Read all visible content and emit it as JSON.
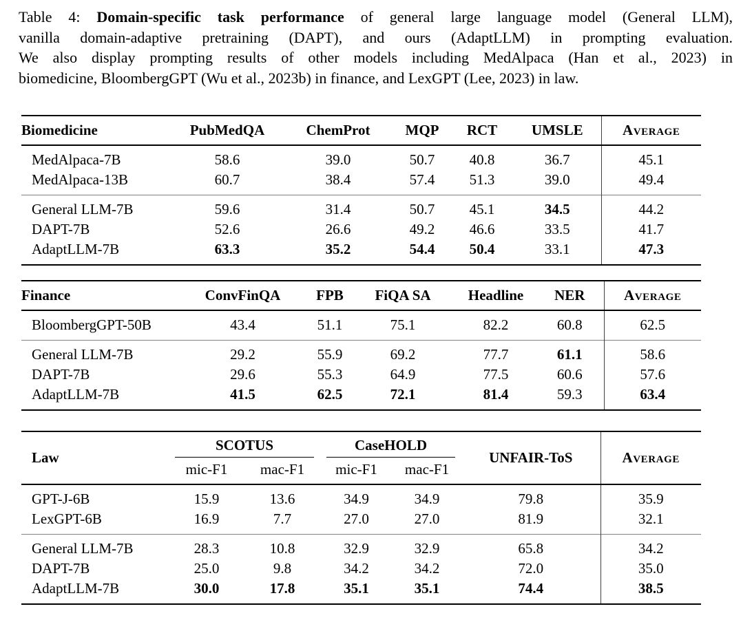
{
  "caption": {
    "lines": [
      {
        "segments": [
          {
            "text": "Table 4: ",
            "bold": false
          },
          {
            "text": "Domain-specific task performance",
            "bold": true
          },
          {
            "text": " of general large language model (General LLM),",
            "bold": false
          }
        ]
      },
      {
        "segments": [
          {
            "text": "vanilla domain-adaptive pretraining (DAPT), and ours (AdaptLLM) in prompting evaluation.",
            "bold": false
          }
        ]
      },
      {
        "segments": [
          {
            "text": "We also display prompting results of other models including MedAlpaca (Han et al., 2023) in",
            "bold": false
          }
        ]
      },
      {
        "segments": [
          {
            "text": "biomedicine, BloombergGPT (Wu et al., 2023b) in finance, and LexGPT (Lee, 2023) in law.",
            "bold": false
          }
        ]
      }
    ]
  },
  "colors": {
    "heavy_rule": "#000000",
    "header_rule": "#000000",
    "group_rule": "#808080",
    "average_divider": "#3f3f3f",
    "text": "#000000",
    "background": "#ffffff"
  },
  "tables": [
    {
      "id": "biomedicine",
      "domain_label": "Biomedicine",
      "columns": [
        "PubMedQA",
        "ChemProt",
        "MQP",
        "RCT",
        "UMSLE"
      ],
      "average_label": "Average",
      "groups": [
        {
          "rows": [
            {
              "model": "MedAlpaca-7B",
              "values": [
                {
                  "v": "58.6"
                },
                {
                  "v": "39.0"
                },
                {
                  "v": "50.7"
                },
                {
                  "v": "40.8"
                },
                {
                  "v": "36.7"
                }
              ],
              "average": {
                "v": "45.1"
              }
            },
            {
              "model": "MedAlpaca-13B",
              "values": [
                {
                  "v": "60.7"
                },
                {
                  "v": "38.4"
                },
                {
                  "v": "57.4"
                },
                {
                  "v": "51.3"
                },
                {
                  "v": "39.0"
                }
              ],
              "average": {
                "v": "49.4"
              }
            }
          ]
        },
        {
          "rows": [
            {
              "model": "General LLM-7B",
              "values": [
                {
                  "v": "59.6"
                },
                {
                  "v": "31.4"
                },
                {
                  "v": "50.7"
                },
                {
                  "v": "45.1"
                },
                {
                  "v": "34.5",
                  "b": true
                }
              ],
              "average": {
                "v": "44.2"
              }
            },
            {
              "model": "DAPT-7B",
              "values": [
                {
                  "v": "52.6"
                },
                {
                  "v": "26.6"
                },
                {
                  "v": "49.2"
                },
                {
                  "v": "46.6"
                },
                {
                  "v": "33.5"
                }
              ],
              "average": {
                "v": "41.7"
              }
            },
            {
              "model": "AdaptLLM-7B",
              "values": [
                {
                  "v": "63.3",
                  "b": true
                },
                {
                  "v": "35.2",
                  "b": true
                },
                {
                  "v": "54.4",
                  "b": true
                },
                {
                  "v": "50.4",
                  "b": true
                },
                {
                  "v": "33.1"
                }
              ],
              "average": {
                "v": "47.3",
                "b": true
              }
            }
          ]
        }
      ]
    },
    {
      "id": "finance",
      "domain_label": "Finance",
      "columns": [
        "ConvFinQA",
        "FPB",
        "FiQA SA",
        "Headline",
        "NER"
      ],
      "average_label": "Average",
      "groups": [
        {
          "rows": [
            {
              "model": "BloombergGPT-50B",
              "values": [
                {
                  "v": "43.4"
                },
                {
                  "v": "51.1"
                },
                {
                  "v": "75.1"
                },
                {
                  "v": "82.2"
                },
                {
                  "v": "60.8"
                }
              ],
              "average": {
                "v": "62.5"
              }
            }
          ]
        },
        {
          "rows": [
            {
              "model": "General LLM-7B",
              "values": [
                {
                  "v": "29.2"
                },
                {
                  "v": "55.9"
                },
                {
                  "v": "69.2"
                },
                {
                  "v": "77.7"
                },
                {
                  "v": "61.1",
                  "b": true
                }
              ],
              "average": {
                "v": "58.6"
              }
            },
            {
              "model": "DAPT-7B",
              "values": [
                {
                  "v": "29.6"
                },
                {
                  "v": "55.3"
                },
                {
                  "v": "64.9"
                },
                {
                  "v": "77.5"
                },
                {
                  "v": "60.6"
                }
              ],
              "average": {
                "v": "57.6"
              }
            },
            {
              "model": "AdaptLLM-7B",
              "values": [
                {
                  "v": "41.5",
                  "b": true
                },
                {
                  "v": "62.5",
                  "b": true
                },
                {
                  "v": "72.1",
                  "b": true
                },
                {
                  "v": "81.4",
                  "b": true
                },
                {
                  "v": "59.3"
                }
              ],
              "average": {
                "v": "63.4",
                "b": true
              }
            }
          ]
        }
      ]
    },
    {
      "id": "law",
      "domain_label": "Law",
      "header_groups": [
        {
          "label": "SCOTUS",
          "subcolumns": [
            "mic-F1",
            "mac-F1"
          ]
        },
        {
          "label": "CaseHOLD",
          "subcolumns": [
            "mic-F1",
            "mac-F1"
          ]
        },
        {
          "label": "UNFAIR-ToS",
          "subcolumns": []
        }
      ],
      "average_label": "Average",
      "groups": [
        {
          "rows": [
            {
              "model": "GPT-J-6B",
              "values": [
                {
                  "v": "15.9"
                },
                {
                  "v": "13.6"
                },
                {
                  "v": "34.9"
                },
                {
                  "v": "34.9"
                },
                {
                  "v": "79.8"
                }
              ],
              "average": {
                "v": "35.9"
              }
            },
            {
              "model": "LexGPT-6B",
              "values": [
                {
                  "v": "16.9"
                },
                {
                  "v": "7.7"
                },
                {
                  "v": "27.0"
                },
                {
                  "v": "27.0"
                },
                {
                  "v": "81.9"
                }
              ],
              "average": {
                "v": "32.1"
              }
            }
          ]
        },
        {
          "rows": [
            {
              "model": "General LLM-7B",
              "values": [
                {
                  "v": "28.3"
                },
                {
                  "v": "10.8"
                },
                {
                  "v": "32.9"
                },
                {
                  "v": "32.9"
                },
                {
                  "v": "65.8"
                }
              ],
              "average": {
                "v": "34.2"
              }
            },
            {
              "model": "DAPT-7B",
              "values": [
                {
                  "v": "25.0"
                },
                {
                  "v": "9.8"
                },
                {
                  "v": "34.2"
                },
                {
                  "v": "34.2"
                },
                {
                  "v": "72.0"
                }
              ],
              "average": {
                "v": "35.0"
              }
            },
            {
              "model": "AdaptLLM-7B",
              "values": [
                {
                  "v": "30.0",
                  "b": true
                },
                {
                  "v": "17.8",
                  "b": true
                },
                {
                  "v": "35.1",
                  "b": true
                },
                {
                  "v": "35.1",
                  "b": true
                },
                {
                  "v": "74.4",
                  "b": true
                }
              ],
              "average": {
                "v": "38.5",
                "b": true
              }
            }
          ]
        }
      ]
    }
  ]
}
